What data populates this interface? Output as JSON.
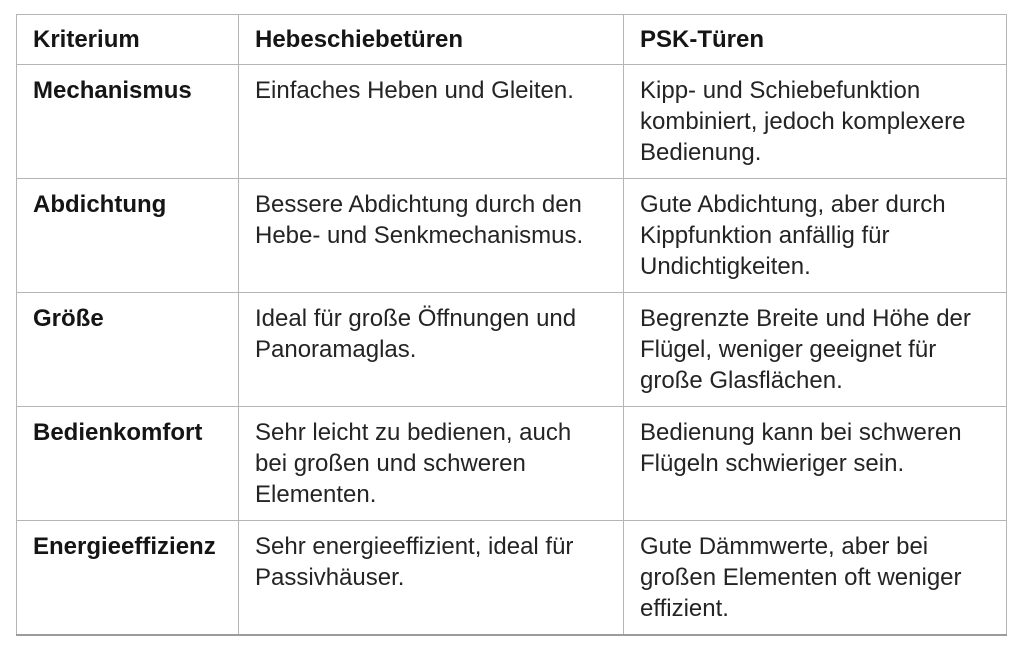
{
  "colors": {
    "background": "#ffffff",
    "border": "#b5b5b5",
    "table_bottom_border": "#9c9c9c",
    "body_text": "#242424",
    "heading_text": "#151515"
  },
  "table": {
    "columns": [
      {
        "label": "Kriterium"
      },
      {
        "label": "Hebeschiebetüren"
      },
      {
        "label": "PSK-Türen"
      }
    ],
    "rows": [
      {
        "kriterium": "Mechanismus",
        "hebeschiebetueren": "Einfaches Heben und Gleiten.",
        "psk_tueren": "Kipp- und Schiebefunktion kombiniert, jedoch komplexere Bedienung."
      },
      {
        "kriterium": "Abdichtung",
        "hebeschiebetueren": "Bessere Abdichtung durch den Hebe- und Senkmechanismus.",
        "psk_tueren": "Gute Abdichtung, aber durch Kippfunktion anfällig für Undichtigkeiten."
      },
      {
        "kriterium": "Größe",
        "hebeschiebetueren": "Ideal für große Öffnungen und Panoramaglas.",
        "psk_tueren": "Begrenzte Breite und Höhe der Flügel, weniger geeignet für große Glasflächen."
      },
      {
        "kriterium": "Bedienkomfort",
        "hebeschiebetueren": "Sehr leicht zu bedienen, auch bei großen und schweren Elementen.",
        "psk_tueren": "Bedienung kann bei schweren Flügeln schwieriger sein."
      },
      {
        "kriterium": "Energieeffizienz",
        "hebeschiebetueren": "Sehr energieeffizient, ideal für Passivhäuser.",
        "psk_tueren": "Gute Dämmwerte, aber bei großen Elementen oft weniger effizient."
      }
    ]
  }
}
